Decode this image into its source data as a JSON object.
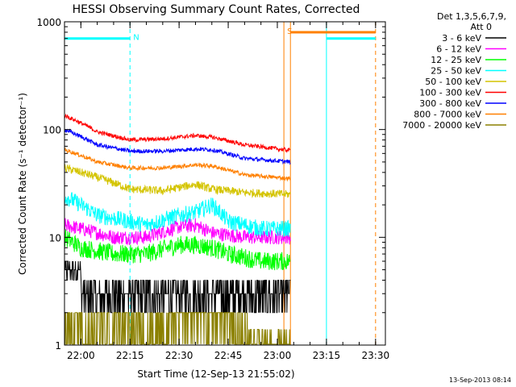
{
  "chart_data": {
    "type": "line",
    "title": "HESSI Observing Summary Count Rates, Corrected",
    "xlabel": "Start Time (12-Sep-13 21:55:02)",
    "ylabel": "Corrected Count Rate (s⁻¹ detector⁻¹)",
    "x_unit": "minutes since 21:55:02",
    "xlim": [
      0,
      98
    ],
    "ylim": [
      1,
      1000
    ],
    "yscale": "log",
    "grid": false,
    "legend_position": "right",
    "legend_header": [
      "Det 1,3,5,6,7,9,",
      "Att 0"
    ],
    "x_ticks": [
      {
        "label": "22:00",
        "value": 5
      },
      {
        "label": "22:15",
        "value": 20
      },
      {
        "label": "22:30",
        "value": 35
      },
      {
        "label": "22:45",
        "value": 50
      },
      {
        "label": "23:00",
        "value": 65
      },
      {
        "label": "23:15",
        "value": 80
      },
      {
        "label": "23:30",
        "value": 95
      }
    ],
    "y_ticks": [
      {
        "label": "1",
        "value": 1
      },
      {
        "label": "10",
        "value": 10
      },
      {
        "label": "100",
        "value": 100
      },
      {
        "label": "1000",
        "value": 1000
      }
    ],
    "data_end_minute": 69,
    "series": [
      {
        "name": "3 - 6 keV",
        "color": "#000000",
        "start": 4.8,
        "levels": [
          [
            0,
            4.8
          ],
          [
            5,
            4.5
          ],
          [
            10,
            3.2
          ],
          [
            20,
            3.0
          ],
          [
            30,
            3.0
          ],
          [
            40,
            3.0
          ],
          [
            50,
            2.9
          ],
          [
            60,
            3.0
          ],
          [
            69,
            3.0
          ]
        ],
        "noise": 0.25
      },
      {
        "name": "6 - 12 keV",
        "color": "#ff00ff",
        "start": 13,
        "levels": [
          [
            0,
            13
          ],
          [
            5,
            12
          ],
          [
            15,
            10
          ],
          [
            25,
            10
          ],
          [
            35,
            12.5
          ],
          [
            40,
            13
          ],
          [
            45,
            11
          ],
          [
            55,
            10
          ],
          [
            69,
            10
          ]
        ],
        "noise": 0.07
      },
      {
        "name": "12 - 25 keV",
        "color": "#00ff00",
        "start": 10,
        "levels": [
          [
            0,
            10
          ],
          [
            5,
            8
          ],
          [
            15,
            7
          ],
          [
            25,
            7
          ],
          [
            35,
            8.5
          ],
          [
            40,
            8.5
          ],
          [
            45,
            8
          ],
          [
            50,
            7
          ],
          [
            60,
            6
          ],
          [
            69,
            6
          ]
        ],
        "noise": 0.09
      },
      {
        "name": "25 - 50 keV",
        "color": "#00ffff",
        "start": 24,
        "levels": [
          [
            0,
            24
          ],
          [
            5,
            20
          ],
          [
            10,
            16
          ],
          [
            20,
            14
          ],
          [
            25,
            13
          ],
          [
            35,
            16
          ],
          [
            40,
            17
          ],
          [
            45,
            20
          ],
          [
            50,
            14
          ],
          [
            60,
            12
          ],
          [
            69,
            12
          ]
        ],
        "noise": 0.08
      },
      {
        "name": "50 - 100 keV",
        "color": "#d4c400",
        "start": 44,
        "levels": [
          [
            0,
            44
          ],
          [
            10,
            36
          ],
          [
            20,
            28
          ],
          [
            30,
            27
          ],
          [
            40,
            31
          ],
          [
            45,
            28
          ],
          [
            55,
            26
          ],
          [
            69,
            25
          ]
        ],
        "noise": 0.04
      },
      {
        "name": "100 - 300 keV",
        "color": "#ff0000",
        "start": 135,
        "levels": [
          [
            0,
            135
          ],
          [
            10,
            95
          ],
          [
            20,
            80
          ],
          [
            30,
            82
          ],
          [
            40,
            88
          ],
          [
            45,
            85
          ],
          [
            55,
            72
          ],
          [
            69,
            64
          ]
        ],
        "noise": 0.02
      },
      {
        "name": "300 - 800 keV",
        "color": "#0000ff",
        "start": 100,
        "levels": [
          [
            0,
            100
          ],
          [
            10,
            72
          ],
          [
            20,
            63
          ],
          [
            30,
            63
          ],
          [
            40,
            66
          ],
          [
            45,
            65
          ],
          [
            55,
            54
          ],
          [
            69,
            50
          ]
        ],
        "noise": 0.02
      },
      {
        "name": "800 - 7000 keV",
        "color": "#ff8000",
        "start": 65,
        "levels": [
          [
            0,
            65
          ],
          [
            10,
            50
          ],
          [
            20,
            44
          ],
          [
            30,
            44
          ],
          [
            40,
            47
          ],
          [
            45,
            46
          ],
          [
            55,
            38
          ],
          [
            69,
            35
          ]
        ],
        "noise": 0.02
      },
      {
        "name": "7000 - 20000 keV",
        "color": "#8b8000",
        "start": 2,
        "levels": [
          [
            0,
            2
          ],
          [
            69,
            1.3
          ]
        ],
        "noise": 0.3
      }
    ],
    "annotations": [
      {
        "label": "N",
        "color": "#00ffff",
        "x": 20,
        "y": 700
      },
      {
        "label": "S",
        "color": "#ff8000",
        "x": 67,
        "y": 800
      }
    ],
    "status_bars": [
      {
        "name": "night",
        "color": "#00ffff",
        "level": 700,
        "segments": [
          [
            0,
            20
          ],
          [
            80,
            95
          ]
        ]
      },
      {
        "name": "saa",
        "color": "#ff8000",
        "level": 800,
        "segments": [
          [
            69,
            95
          ]
        ]
      }
    ],
    "markers": [
      {
        "color": "#00ffff",
        "x": 20,
        "style": "dashed"
      },
      {
        "color": "#ff8000",
        "x": 67,
        "style": "solid"
      },
      {
        "color": "#ff8000",
        "x": 69,
        "style": "solid"
      },
      {
        "color": "#00ffff",
        "x": 80,
        "style": "solid"
      },
      {
        "color": "#ff8000",
        "x": 95,
        "style": "dashed"
      }
    ]
  },
  "footer": {
    "timestamp": "13-Sep-2013 08:14"
  }
}
